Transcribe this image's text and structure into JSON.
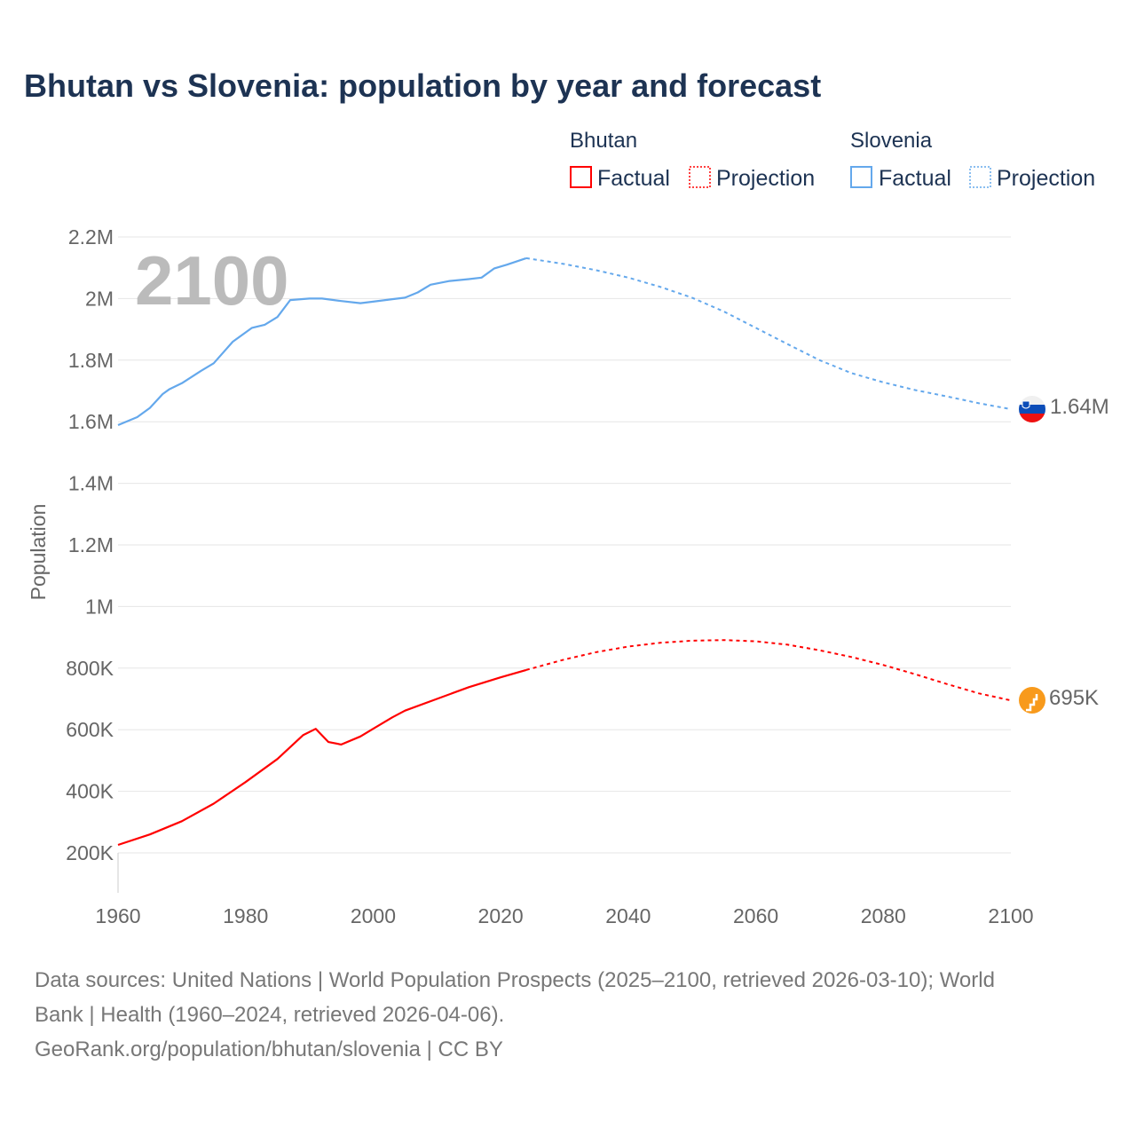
{
  "title": "Bhutan vs Slovenia: population by year and forecast",
  "year_display": "2100",
  "legend": {
    "groups": [
      {
        "name": "Bhutan",
        "color": "#ff0000",
        "items": [
          "Factual",
          "Projection"
        ]
      },
      {
        "name": "Slovenia",
        "color": "#64a8ec",
        "items": [
          "Factual",
          "Projection"
        ]
      }
    ]
  },
  "chart_data": {
    "type": "line",
    "title": "Bhutan vs Slovenia: population by year and forecast",
    "xlabel": "",
    "ylabel": "Population",
    "xlim": [
      1960,
      2100
    ],
    "ylim": [
      200000,
      2200000
    ],
    "x_ticks": [
      "1960",
      "1980",
      "2000",
      "2020",
      "2040",
      "2060",
      "2080",
      "2100"
    ],
    "y_ticks": [
      {
        "value": 200000,
        "label": "200K"
      },
      {
        "value": 400000,
        "label": "400K"
      },
      {
        "value": 600000,
        "label": "600K"
      },
      {
        "value": 800000,
        "label": "800K"
      },
      {
        "value": 1000000,
        "label": "1M"
      },
      {
        "value": 1200000,
        "label": "1.2M"
      },
      {
        "value": 1400000,
        "label": "1.4M"
      },
      {
        "value": 1600000,
        "label": "1.6M"
      },
      {
        "value": 1800000,
        "label": "1.8M"
      },
      {
        "value": 2000000,
        "label": "2M"
      },
      {
        "value": 2200000,
        "label": "2.2M"
      }
    ],
    "grid": true,
    "series": [
      {
        "name": "Slovenia",
        "color": "#64a8ec",
        "end_label": "1.64M",
        "factual": [
          [
            1960,
            1589000
          ],
          [
            1963,
            1615000
          ],
          [
            1965,
            1645000
          ],
          [
            1967,
            1690000
          ],
          [
            1968,
            1705000
          ],
          [
            1970,
            1725000
          ],
          [
            1973,
            1765000
          ],
          [
            1975,
            1790000
          ],
          [
            1978,
            1860000
          ],
          [
            1981,
            1905000
          ],
          [
            1983,
            1915000
          ],
          [
            1985,
            1940000
          ],
          [
            1987,
            1995000
          ],
          [
            1990,
            2000000
          ],
          [
            1992,
            2000000
          ],
          [
            1995,
            1992000
          ],
          [
            1998,
            1985000
          ],
          [
            2000,
            1990000
          ],
          [
            2003,
            1998000
          ],
          [
            2005,
            2003000
          ],
          [
            2007,
            2020000
          ],
          [
            2009,
            2045000
          ],
          [
            2012,
            2057000
          ],
          [
            2015,
            2063000
          ],
          [
            2017,
            2068000
          ],
          [
            2019,
            2098000
          ],
          [
            2021,
            2110000
          ],
          [
            2024,
            2131000
          ]
        ],
        "projection": [
          [
            2024,
            2131000
          ],
          [
            2030,
            2112000
          ],
          [
            2035,
            2092000
          ],
          [
            2040,
            2068000
          ],
          [
            2045,
            2038000
          ],
          [
            2050,
            2003000
          ],
          [
            2055,
            1958000
          ],
          [
            2060,
            1905000
          ],
          [
            2065,
            1852000
          ],
          [
            2070,
            1800000
          ],
          [
            2075,
            1758000
          ],
          [
            2080,
            1728000
          ],
          [
            2085,
            1703000
          ],
          [
            2090,
            1682000
          ],
          [
            2095,
            1660000
          ],
          [
            2100,
            1641000
          ]
        ]
      },
      {
        "name": "Bhutan",
        "color": "#ff0000",
        "end_label": "695K",
        "factual": [
          [
            1960,
            226000
          ],
          [
            1965,
            260000
          ],
          [
            1970,
            303000
          ],
          [
            1975,
            360000
          ],
          [
            1980,
            430000
          ],
          [
            1985,
            505000
          ],
          [
            1989,
            582000
          ],
          [
            1991,
            603000
          ],
          [
            1993,
            560000
          ],
          [
            1995,
            552000
          ],
          [
            1998,
            578000
          ],
          [
            2000,
            603000
          ],
          [
            2003,
            640000
          ],
          [
            2005,
            662000
          ],
          [
            2010,
            700000
          ],
          [
            2015,
            738000
          ],
          [
            2020,
            770000
          ],
          [
            2024,
            794000
          ]
        ],
        "projection": [
          [
            2024,
            794000
          ],
          [
            2030,
            828000
          ],
          [
            2035,
            852000
          ],
          [
            2040,
            870000
          ],
          [
            2045,
            882000
          ],
          [
            2050,
            889000
          ],
          [
            2055,
            891000
          ],
          [
            2060,
            887000
          ],
          [
            2065,
            876000
          ],
          [
            2070,
            858000
          ],
          [
            2075,
            836000
          ],
          [
            2080,
            810000
          ],
          [
            2085,
            780000
          ],
          [
            2090,
            748000
          ],
          [
            2095,
            718000
          ],
          [
            2100,
            695000
          ]
        ]
      }
    ]
  },
  "footer": {
    "line1": "Data sources: United Nations | World Population Prospects (2025–2100, retrieved 2026-03-10); World",
    "line2": "Bank | Health (1960–2024, retrieved 2026-04-06).",
    "line3": "GeoRank.org/population/bhutan/slovenia | CC BY"
  }
}
